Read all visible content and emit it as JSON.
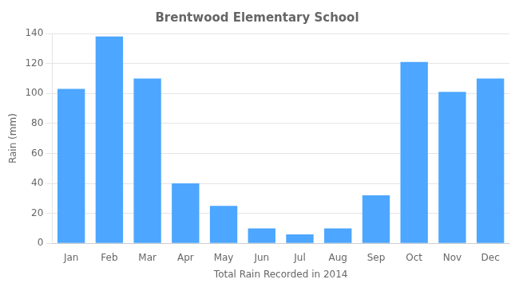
{
  "chart_data": {
    "type": "bar",
    "title": "Brentwood Elementary School",
    "xlabel": "Total Rain Recorded in 2014",
    "ylabel": "Rain (mm)",
    "categories": [
      "Jan",
      "Feb",
      "Mar",
      "Apr",
      "May",
      "Jun",
      "Jul",
      "Aug",
      "Sep",
      "Oct",
      "Nov",
      "Dec"
    ],
    "values": [
      103,
      138,
      110,
      40,
      25,
      10,
      6,
      10,
      32,
      121,
      101,
      110
    ],
    "color": "#4DA6FF",
    "ylim": [
      0,
      140
    ],
    "yticks": [
      0,
      20,
      40,
      60,
      80,
      100,
      120,
      140
    ],
    "grid": true
  }
}
